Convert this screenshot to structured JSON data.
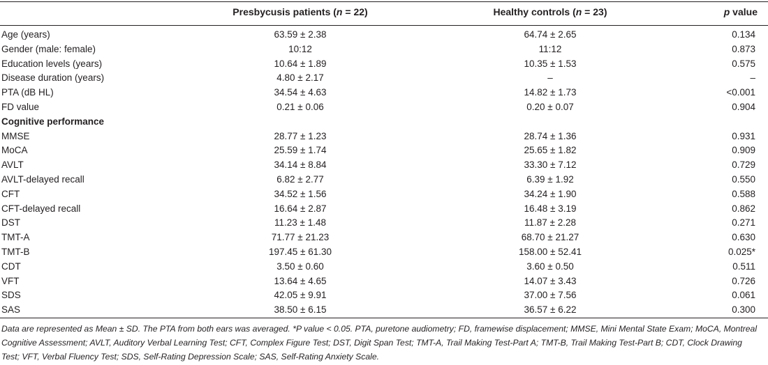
{
  "table": {
    "headers": {
      "group1_label": "Presbycusis patients (",
      "group1_n": "n",
      "group1_count": " = 22)",
      "group2_label": "Healthy controls (",
      "group2_n": "n",
      "group2_count": " = 23)",
      "pvalue_p": "p",
      "pvalue_label": " value"
    },
    "rows": [
      {
        "label": "Age (years)",
        "g1": "63.59 ± 2.38",
        "g2": "64.74 ± 2.65",
        "p": "0.134"
      },
      {
        "label": "Gender (male: female)",
        "g1": "10:12",
        "g2": "11:12",
        "p": "0.873"
      },
      {
        "label": "Education levels (years)",
        "g1": "10.64 ± 1.89",
        "g2": "10.35 ± 1.53",
        "p": "0.575"
      },
      {
        "label": "Disease duration (years)",
        "g1": "4.80 ± 2.17",
        "g2": "–",
        "p": "–"
      },
      {
        "label": "PTA (dB HL)",
        "g1": "34.54 ± 4.63",
        "g2": "14.82 ± 1.73",
        "p": "<0.001"
      },
      {
        "label": "FD value",
        "g1": "0.21 ± 0.06",
        "g2": "0.20 ± 0.07",
        "p": "0.904"
      },
      {
        "label": "Cognitive performance",
        "g1": "",
        "g2": "",
        "p": ""
      },
      {
        "label": "MMSE",
        "g1": "28.77 ± 1.23",
        "g2": "28.74 ± 1.36",
        "p": "0.931"
      },
      {
        "label": "MoCA",
        "g1": "25.59 ± 1.74",
        "g2": "25.65 ± 1.82",
        "p": "0.909"
      },
      {
        "label": "AVLT",
        "g1": "34.14 ± 8.84",
        "g2": "33.30 ± 7.12",
        "p": "0.729"
      },
      {
        "label": "AVLT-delayed recall",
        "g1": "6.82 ± 2.77",
        "g2": "6.39 ± 1.92",
        "p": "0.550"
      },
      {
        "label": "CFT",
        "g1": "34.52 ± 1.56",
        "g2": "34.24 ± 1.90",
        "p": "0.588"
      },
      {
        "label": "CFT-delayed recall",
        "g1": "16.64 ± 2.87",
        "g2": "16.48 ± 3.19",
        "p": "0.862"
      },
      {
        "label": "DST",
        "g1": "11.23 ± 1.48",
        "g2": "11.87 ± 2.28",
        "p": "0.271"
      },
      {
        "label": "TMT-A",
        "g1": "71.77 ± 21.23",
        "g2": "68.70 ± 21.27",
        "p": "0.630"
      },
      {
        "label": "TMT-B",
        "g1": "197.45 ± 61.30",
        "g2": "158.00 ± 52.41",
        "p": "0.025*"
      },
      {
        "label": "CDT",
        "g1": "3.50 ± 0.60",
        "g2": "3.60 ± 0.50",
        "p": "0.511"
      },
      {
        "label": "VFT",
        "g1": "13.64 ± 4.65",
        "g2": "14.07 ± 3.43",
        "p": "0.726"
      },
      {
        "label": "SDS",
        "g1": "42.05 ± 9.91",
        "g2": "37.00 ± 7.56",
        "p": "0.061"
      },
      {
        "label": "SAS",
        "g1": "38.50 ± 6.15",
        "g2": "36.57 ± 6.22",
        "p": "0.300"
      }
    ],
    "footnote": "Data are represented as Mean ± SD. The PTA from both ears was averaged. *P value < 0.05. PTA, puretone audiometry; FD, framewise displacement; MMSE, Mini Mental State Exam; MoCA, Montreal Cognitive Assessment; AVLT, Auditory Verbal Learning Test; CFT, Complex Figure Test; DST, Digit Span Test; TMT-A, Trail Making Test-Part A; TMT-B, Trail Making Test-Part B; CDT, Clock Drawing Test; VFT, Verbal Fluency Test; SDS, Self-Rating Depression Scale; SAS, Self-Rating Anxiety Scale."
  }
}
